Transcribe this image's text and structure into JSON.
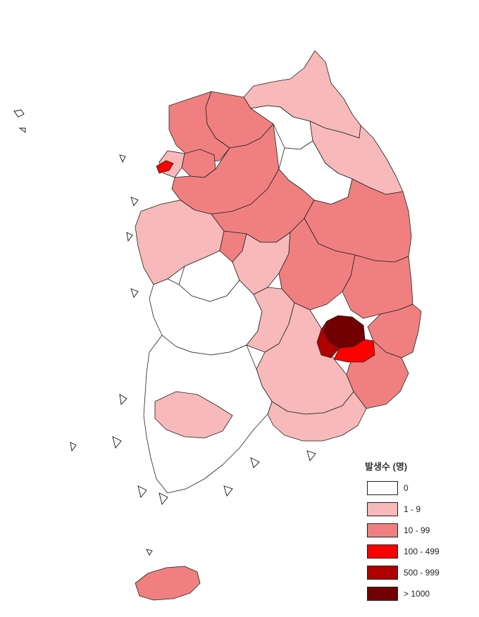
{
  "legend": {
    "title": "발생수 (명)",
    "items": [
      {
        "label": "0",
        "color": "#ffffff"
      },
      {
        "label": "1 - 9",
        "color": "#f7b9b9"
      },
      {
        "label": "10 - 99",
        "color": "#f08080"
      },
      {
        "label": "100 - 499",
        "color": "#ff0000"
      },
      {
        "label": "500 - 999",
        "color": "#b00000"
      },
      {
        "label": "> 1000",
        "color": "#730000"
      }
    ]
  },
  "regions": [
    {
      "name": "gangwon-north",
      "class": 1
    },
    {
      "name": "gangwon-central",
      "class": 2
    },
    {
      "name": "gangwon-west",
      "class": 0
    },
    {
      "name": "gangwon-east",
      "class": 1
    },
    {
      "name": "gangwon-south",
      "class": 0
    },
    {
      "name": "gyeonggi-north",
      "class": 2
    },
    {
      "name": "gyeonggi-south",
      "class": 2
    },
    {
      "name": "seoul",
      "class": 2
    },
    {
      "name": "incheon",
      "class": 1
    },
    {
      "name": "chungbuk-north",
      "class": 2
    },
    {
      "name": "chungbuk-south",
      "class": 1
    },
    {
      "name": "chungnam",
      "class": 1
    },
    {
      "name": "chungnam-central",
      "class": 0
    },
    {
      "name": "daejeon",
      "class": 2
    },
    {
      "name": "jeonbuk",
      "class": 0
    },
    {
      "name": "jeonbuk-east",
      "class": 1
    },
    {
      "name": "jeonnam",
      "class": 0
    },
    {
      "name": "jeonnam-east",
      "class": 1
    },
    {
      "name": "gyeongbuk-north",
      "class": 2
    },
    {
      "name": "gyeongbuk-west",
      "class": 2
    },
    {
      "name": "gyeongbuk-east",
      "class": 2
    },
    {
      "name": "pohang",
      "class": 2
    },
    {
      "name": "gyeongnam",
      "class": 1
    },
    {
      "name": "gyeongnam-south",
      "class": 1
    },
    {
      "name": "busan-ulsan",
      "class": 2
    },
    {
      "name": "daegu",
      "class": 5
    },
    {
      "name": "gyeongsan",
      "class": 4
    },
    {
      "name": "cheongdo",
      "class": 3
    },
    {
      "name": "west-island",
      "class": 3
    },
    {
      "name": "jeju",
      "class": 2
    }
  ]
}
